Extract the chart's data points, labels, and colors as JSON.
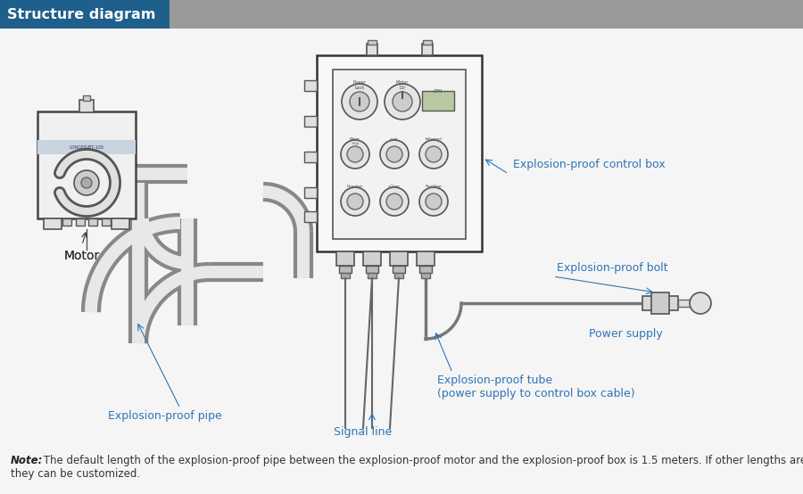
{
  "title": "Structure diagram",
  "title_bg_color": "#1f5f8b",
  "header_bar_color": "#999999",
  "bg_color": "#f5f5f5",
  "label_color": "#2e75b6",
  "note_bold": "Note:",
  "note_line1": " The default length of the explosion-proof pipe between the explosion-proof motor and the explosion-proof box is 1.5 meters. If other lengths are required,",
  "note_line2": "they can be customized.",
  "labels": {
    "motor": "Motor",
    "control_box": "Explosion-proof control box",
    "bolt": "Explosion-proof bolt",
    "power_supply": "Power supply",
    "tube_line1": "Explosion-proof tube",
    "tube_line2": "(power supply to control box cable)",
    "pipe": "Explosion-proof pipe",
    "signal": "Signal line"
  }
}
